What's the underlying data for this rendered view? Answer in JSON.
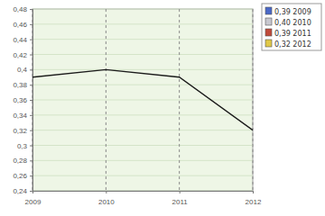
{
  "chart_data": {
    "type": "line",
    "categories": [
      "2009",
      "2010",
      "2011",
      "2012"
    ],
    "values": [
      0.39,
      0.4,
      0.39,
      0.32
    ],
    "value_labels": [
      "0,39 2009",
      "0,40 2010",
      "0,39 2011",
      "0,32 2012"
    ],
    "color": "#1a1a1a",
    "colors": [
      "#4a68c8",
      "#c8c8d0",
      "#c04a3a",
      "#e0c848"
    ],
    "legend": "upper right",
    "ylim": [
      0.24,
      0.48
    ],
    "yticks": [
      {
        "value": 0.24,
        "label": "0,24"
      },
      {
        "value": 0.26,
        "label": "0,26"
      },
      {
        "value": 0.28,
        "label": "0,28"
      },
      {
        "value": 0.3,
        "label": "0,3"
      },
      {
        "value": 0.32,
        "label": "0,32"
      },
      {
        "value": 0.34,
        "label": "0,34"
      },
      {
        "value": 0.36,
        "label": "0,36"
      },
      {
        "value": 0.38,
        "label": "0,38"
      },
      {
        "value": 0.4,
        "label": "0,4"
      },
      {
        "value": 0.42,
        "label": "0,42"
      },
      {
        "value": 0.44,
        "label": "0,44"
      },
      {
        "value": 0.46,
        "label": "0,46"
      },
      {
        "value": 0.48,
        "label": "0,48"
      }
    ],
    "grid": true
  }
}
